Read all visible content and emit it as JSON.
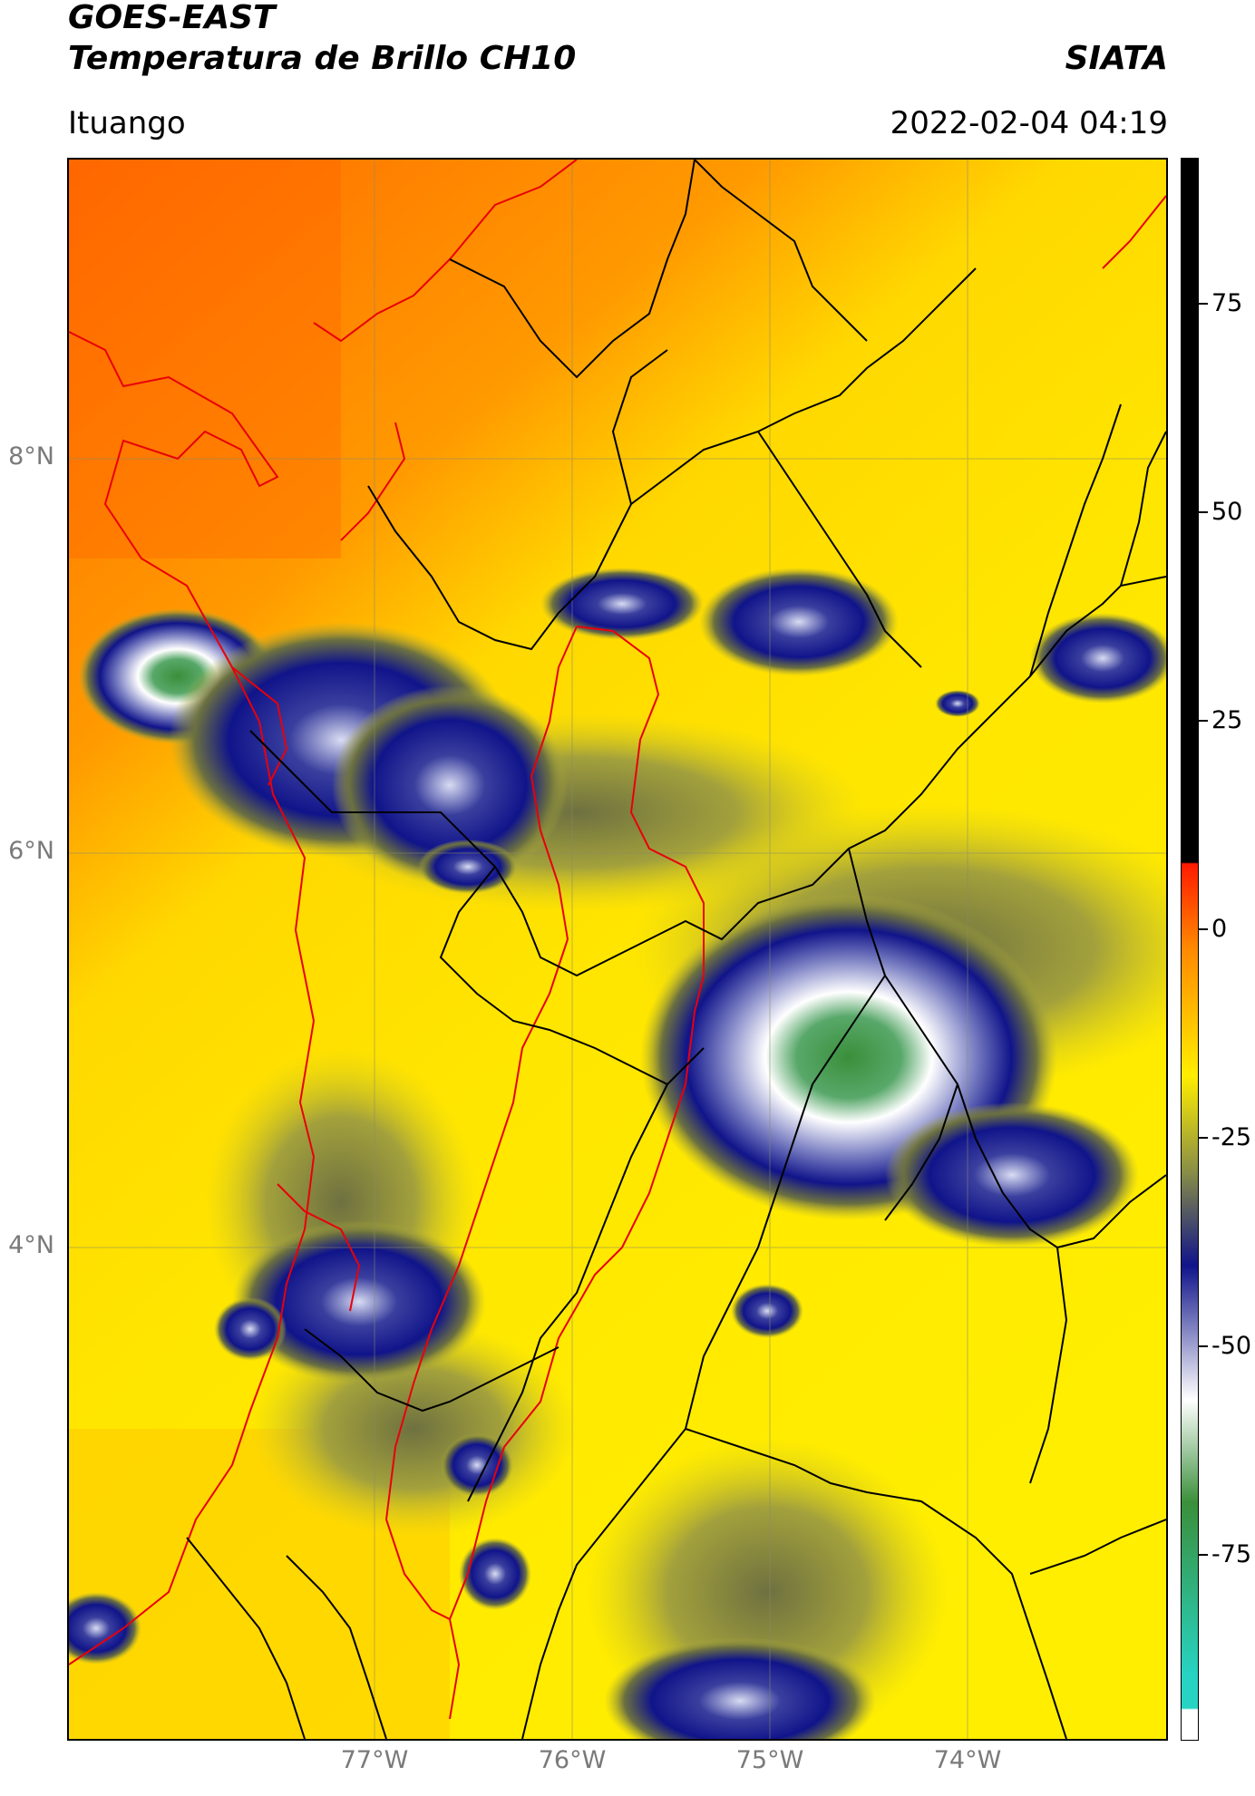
{
  "header": {
    "satellite": "GOES-EAST",
    "product": "Temperatura de Brillo CH10",
    "brand": "SIATA",
    "location": "Ituango",
    "datetime": "2022-02-04 04:19"
  },
  "map": {
    "lat_labels": [
      "8°N",
      "6°N",
      "4°N"
    ],
    "lon_labels": [
      "77°W",
      "76°W",
      "75°W",
      "74°W"
    ],
    "lat_range": [
      2.0,
      9.5
    ],
    "lon_range": [
      -78.5,
      -73.0
    ],
    "grid": true
  },
  "colorbar": {
    "ticks": [
      "75",
      "50",
      "25",
      "0",
      "-25",
      "-50",
      "-75"
    ],
    "range": [
      -100,
      90
    ],
    "colors": {
      "black": "#000000",
      "red": "#ff1a00",
      "orange": "#ff8a00",
      "yellow": "#ffee00",
      "olive": "#8a8f45",
      "navy": "#10148a",
      "white": "#ffffff",
      "green": "#3a8f3a",
      "teal": "#27d4c4"
    }
  },
  "icons": {
    "country_border_color": "#e8000b",
    "department_border_color": "#000000"
  }
}
